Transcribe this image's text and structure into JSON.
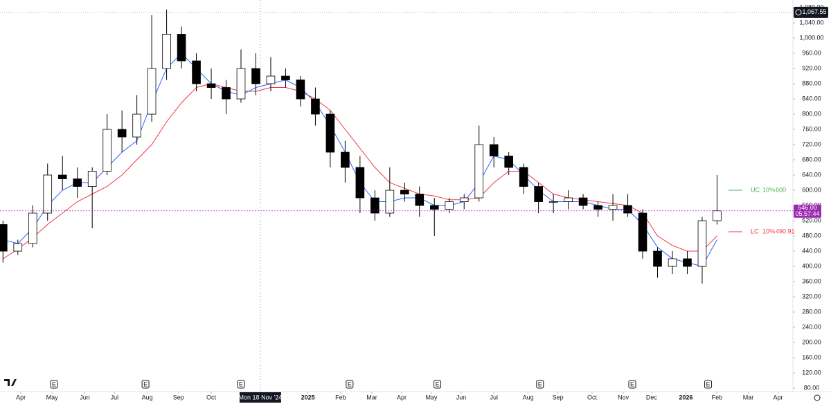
{
  "chart_data": {
    "type": "candlestick",
    "up_color": "#ffffff",
    "down_color": "#000000",
    "wick_color": "#000000",
    "open": [
      510,
      440,
      460,
      540,
      640,
      630,
      610,
      650,
      760,
      740,
      800,
      920,
      1010,
      940,
      880,
      870,
      840,
      920,
      880,
      900,
      890,
      840,
      800,
      700,
      660,
      580,
      540,
      600,
      590,
      560,
      550,
      570,
      580,
      720,
      690,
      660,
      610,
      570,
      570,
      580,
      560,
      550,
      560,
      540,
      440,
      400,
      420,
      400,
      520
    ],
    "high": [
      520,
      470,
      560,
      670,
      690,
      660,
      660,
      800,
      810,
      850,
      1060,
      1075,
      1030,
      960,
      920,
      890,
      970,
      960,
      950,
      920,
      900,
      870,
      810,
      730,
      690,
      600,
      660,
      620,
      610,
      580,
      580,
      590,
      770,
      740,
      700,
      670,
      620,
      590,
      600,
      590,
      570,
      590,
      590,
      550,
      450,
      440,
      440,
      530,
      640
    ],
    "low": [
      410,
      430,
      450,
      520,
      600,
      580,
      500,
      640,
      700,
      720,
      780,
      890,
      920,
      860,
      840,
      800,
      830,
      850,
      860,
      870,
      820,
      770,
      660,
      620,
      540,
      520,
      530,
      570,
      530,
      480,
      540,
      550,
      570,
      660,
      640,
      590,
      540,
      540,
      550,
      550,
      530,
      520,
      530,
      420,
      370,
      380,
      380,
      355,
      510
    ],
    "close": [
      440,
      460,
      540,
      640,
      630,
      610,
      650,
      760,
      740,
      800,
      920,
      1010,
      940,
      880,
      870,
      840,
      920,
      880,
      900,
      890,
      840,
      800,
      700,
      660,
      580,
      540,
      600,
      590,
      560,
      550,
      570,
      580,
      720,
      690,
      660,
      610,
      570,
      570,
      580,
      560,
      550,
      560,
      540,
      440,
      400,
      420,
      400,
      520,
      546
    ],
    "moving_averages": [
      {
        "color": "#f23645",
        "values": [
          420,
          445,
          475,
          510,
          540,
          570,
          590,
          610,
          640,
          680,
          720,
          780,
          830,
          870,
          880,
          870,
          860,
          860,
          870,
          870,
          860,
          840,
          810,
          760,
          710,
          660,
          620,
          605,
          590,
          585,
          575,
          575,
          580,
          620,
          650,
          650,
          620,
          590,
          580,
          575,
          570,
          565,
          560,
          540,
          480,
          455,
          440,
          440,
          480
        ]
      },
      {
        "color": "#2962ff",
        "values": [
          470,
          460,
          500,
          560,
          600,
          620,
          620,
          660,
          700,
          730,
          830,
          920,
          960,
          920,
          880,
          860,
          850,
          870,
          880,
          890,
          870,
          830,
          770,
          700,
          620,
          570,
          570,
          580,
          580,
          560,
          560,
          570,
          620,
          690,
          680,
          640,
          600,
          570,
          570,
          570,
          560,
          550,
          550,
          510,
          450,
          420,
          410,
          400,
          470
        ]
      }
    ],
    "xlim": [
      -0.2,
      53.1
    ],
    "xticks": [
      {
        "value": 1.2,
        "label": "Apr"
      },
      {
        "value": 3.3,
        "label": "May"
      },
      {
        "value": 5.5,
        "label": "Jun"
      },
      {
        "value": 7.5,
        "label": "Jul"
      },
      {
        "value": 9.7,
        "label": "Aug"
      },
      {
        "value": 11.8,
        "label": "Sep"
      },
      {
        "value": 14,
        "label": "Oct"
      },
      {
        "value": 20.5,
        "label": "2025"
      },
      {
        "value": 22.7,
        "label": "Feb"
      },
      {
        "value": 24.8,
        "label": "Mar"
      },
      {
        "value": 26.8,
        "label": "Apr"
      },
      {
        "value": 28.8,
        "label": "May"
      },
      {
        "value": 30.8,
        "label": "Jun"
      },
      {
        "value": 33,
        "label": "Jul"
      },
      {
        "value": 35.3,
        "label": "Aug"
      },
      {
        "value": 37.3,
        "label": "Sep"
      },
      {
        "value": 39.6,
        "label": "Oct"
      },
      {
        "value": 41.7,
        "label": "Nov"
      },
      {
        "value": 43.6,
        "label": "Dec"
      },
      {
        "value": 45.9,
        "label": "2026"
      },
      {
        "value": 48,
        "label": "Feb"
      },
      {
        "value": 50.1,
        "label": "Mar"
      },
      {
        "value": 52.1,
        "label": "Apr"
      }
    ],
    "ylim": [
      71,
      1100
    ],
    "yticks": [
      {
        "value": 80,
        "label": "80.00"
      },
      {
        "value": 120,
        "label": "120.00"
      },
      {
        "value": 160,
        "label": "160.00"
      },
      {
        "value": 200,
        "label": "200.00"
      },
      {
        "value": 240,
        "label": "240.00"
      },
      {
        "value": 280,
        "label": "280.00"
      },
      {
        "value": 320,
        "label": "320.00"
      },
      {
        "value": 360,
        "label": "360.00"
      },
      {
        "value": 400,
        "label": "400.00"
      },
      {
        "value": 440,
        "label": "440.00"
      },
      {
        "value": 480,
        "label": "480.00"
      },
      {
        "value": 520,
        "label": "520.00"
      },
      {
        "value": 560,
        "label": "560.00"
      },
      {
        "value": 600,
        "label": "600.00"
      },
      {
        "value": 640,
        "label": "640.00"
      },
      {
        "value": 680,
        "label": "680.00"
      },
      {
        "value": 720,
        "label": "720.00"
      },
      {
        "value": 760,
        "label": "760.00"
      },
      {
        "value": 800,
        "label": "800.00"
      },
      {
        "value": 840,
        "label": "840.00"
      },
      {
        "value": 880,
        "label": "880.00"
      },
      {
        "value": 920,
        "label": "920.00"
      },
      {
        "value": 960,
        "label": "960.00"
      },
      {
        "value": 1000,
        "label": "1,000.00"
      },
      {
        "value": 1040,
        "label": "1,040.00"
      },
      {
        "value": 1080,
        "label": "1,080.00"
      }
    ],
    "crosshair": {
      "x": 17.3,
      "label": "Mon 18 Nov '24"
    },
    "events": [
      {
        "x": 3.43,
        "label": "E"
      },
      {
        "x": 9.58,
        "label": "E"
      },
      {
        "x": 16,
        "label": "E"
      },
      {
        "x": 23.3,
        "label": "E"
      },
      {
        "x": 29.2,
        "label": "E"
      },
      {
        "x": 36.1,
        "label": "E"
      },
      {
        "x": 42.3,
        "label": "E"
      },
      {
        "x": 47.4,
        "label": "E"
      }
    ],
    "high_marker": {
      "value": 1067.55,
      "label": "1,067.55"
    },
    "last": {
      "value": 546,
      "label": "546.00",
      "timer": "05:57:44",
      "color": "#9c27b0"
    },
    "limits": [
      {
        "label": "UC",
        "pct": "10%",
        "value": 600,
        "color": "#4caf50"
      },
      {
        "label": "LC",
        "pct": "10%",
        "value": 490.91,
        "color": "#f23645"
      }
    ]
  }
}
